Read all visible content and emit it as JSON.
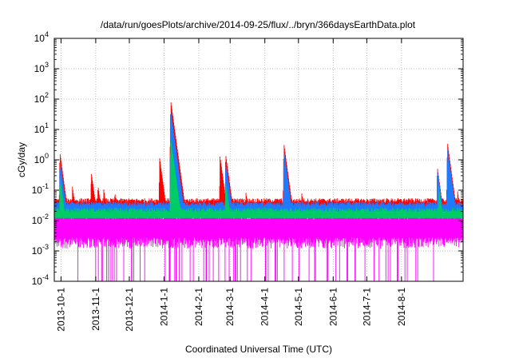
{
  "chart_data": {
    "type": "line",
    "title": "/data/run/goesPlots/archive/2014-09-25/flux/../bryn/366daysEarthData.plot",
    "xlabel": "Coordinated Universal Time (UTC)",
    "ylabel": "cGy/day",
    "yscale": "log",
    "ylim": [
      0.0001,
      10000
    ],
    "xlim": [
      "2013-09-25",
      "2014-09-25"
    ],
    "grid": true,
    "legend": "none",
    "x_ticks": [
      {
        "date": "2013-10-01",
        "label": "2013-10-1"
      },
      {
        "date": "2013-11-01",
        "label": "2013-11-1"
      },
      {
        "date": "2013-12-01",
        "label": "2013-12-1"
      },
      {
        "date": "2014-01-01",
        "label": "2014-1-1"
      },
      {
        "date": "2014-02-01",
        "label": "2014-2-1"
      },
      {
        "date": "2014-03-01",
        "label": "2014-3-1"
      },
      {
        "date": "2014-04-01",
        "label": "2014-4-1"
      },
      {
        "date": "2014-05-01",
        "label": "2014-5-1"
      },
      {
        "date": "2014-06-01",
        "label": "2014-6-1"
      },
      {
        "date": "2014-07-01",
        "label": "2014-7-1"
      },
      {
        "date": "2014-08-01",
        "label": "2014-8-1"
      }
    ],
    "y_ticks": [
      {
        "base": "10",
        "exp": "-4"
      },
      {
        "base": "10",
        "exp": "-3"
      },
      {
        "base": "10",
        "exp": "-2"
      },
      {
        "base": "10",
        "exp": "-1"
      },
      {
        "base": "10",
        "exp": "0"
      },
      {
        "base": "10",
        "exp": "1"
      },
      {
        "base": "10",
        "exp": "2"
      },
      {
        "base": "10",
        "exp": "3"
      },
      {
        "base": "10",
        "exp": "4"
      }
    ],
    "series_colors": [
      "#ff0000",
      "#1e7bff",
      "#00cc66",
      "#ff00ff"
    ],
    "series": [
      {
        "color": "#ff0000",
        "baseline": 0.045,
        "events": [
          {
            "date": "2013-09-30",
            "value": 1.8
          },
          {
            "date": "2013-10-11",
            "value": 0.15
          },
          {
            "date": "2013-10-28",
            "value": 0.4
          },
          {
            "date": "2013-11-03",
            "value": 0.15
          },
          {
            "date": "2013-11-08",
            "value": 0.12
          },
          {
            "date": "2013-11-18",
            "value": 0.09
          },
          {
            "date": "2013-12-28",
            "value": 1.2
          },
          {
            "date": "2014-01-07",
            "value": 90
          },
          {
            "date": "2014-02-20",
            "value": 1.3
          },
          {
            "date": "2014-02-25",
            "value": 1.6
          },
          {
            "date": "2014-03-15",
            "value": 0.09
          },
          {
            "date": "2014-04-18",
            "value": 3.5
          },
          {
            "date": "2014-05-04",
            "value": 0.08
          },
          {
            "date": "2014-09-11",
            "value": 3.8
          },
          {
            "date": "2014-09-02",
            "value": 0.6
          },
          {
            "date": "2014-09-20",
            "value": 0.1
          }
        ]
      },
      {
        "color": "#1e7bff",
        "baseline": 0.035,
        "events": [
          {
            "date": "2013-09-30",
            "value": 1.0
          },
          {
            "date": "2014-01-07",
            "value": 40
          },
          {
            "date": "2014-02-25",
            "value": 0.9
          },
          {
            "date": "2014-04-18",
            "value": 2.0
          },
          {
            "date": "2014-09-02",
            "value": 0.5
          },
          {
            "date": "2014-09-11",
            "value": 2.5
          }
        ]
      },
      {
        "color": "#00cc66",
        "baseline": 0.022,
        "events": [
          {
            "date": "2013-09-30",
            "value": 0.3
          },
          {
            "date": "2014-01-07",
            "value": 5
          },
          {
            "date": "2014-02-25",
            "value": 0.2
          },
          {
            "date": "2014-09-03",
            "value": 0.15
          }
        ]
      },
      {
        "color": "#ff00ff",
        "baseline": 0.012,
        "floor": 0.002,
        "notes": "dense noise between ~0.002 and ~0.02 with frequent drops to below 1e-4"
      }
    ]
  }
}
